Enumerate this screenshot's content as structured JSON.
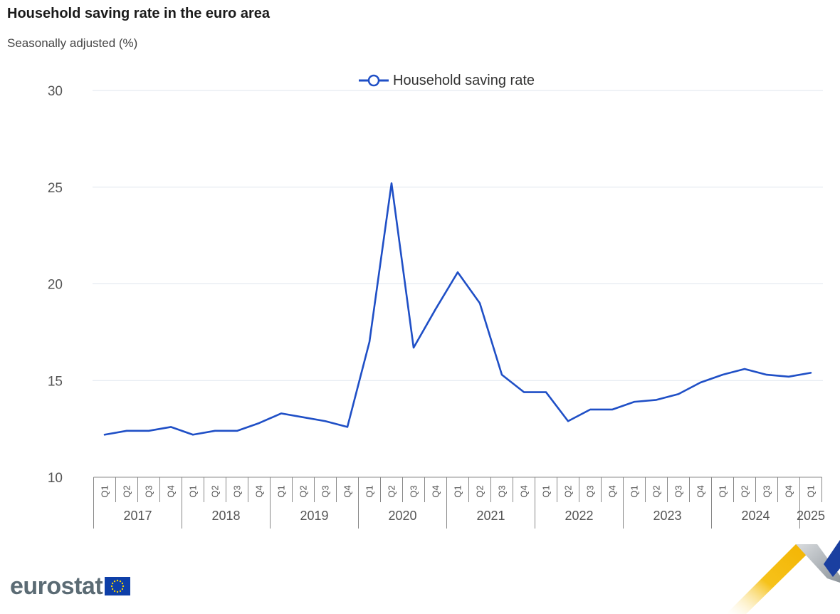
{
  "header": {
    "title": "Household saving rate in the euro area",
    "subtitle": "Seasonally adjusted (%)"
  },
  "branding": {
    "logo_text": "eurostat"
  },
  "colors": {
    "series": "#1f4fc6",
    "grid": "#dfe6ee",
    "axis_text": "#555555",
    "axis_line": "#888888"
  },
  "chart_data": {
    "type": "line",
    "title": "Household saving rate in the euro area",
    "subtitle": "Seasonally adjusted (%)",
    "xlabel": "",
    "ylabel": "",
    "ylim": [
      10,
      30
    ],
    "yticks": [
      10,
      15,
      20,
      25,
      30
    ],
    "grid": true,
    "legend_position": "top-center",
    "categories": [
      "2017-Q1",
      "2017-Q2",
      "2017-Q3",
      "2017-Q4",
      "2018-Q1",
      "2018-Q2",
      "2018-Q3",
      "2018-Q4",
      "2019-Q1",
      "2019-Q2",
      "2019-Q3",
      "2019-Q4",
      "2020-Q1",
      "2020-Q2",
      "2020-Q3",
      "2020-Q4",
      "2021-Q1",
      "2021-Q2",
      "2021-Q3",
      "2021-Q4",
      "2022-Q1",
      "2022-Q2",
      "2022-Q3",
      "2022-Q4",
      "2023-Q1",
      "2023-Q2",
      "2023-Q3",
      "2023-Q4",
      "2024-Q1",
      "2024-Q2",
      "2024-Q3",
      "2024-Q4",
      "2025-Q1"
    ],
    "quarter_labels": [
      "Q1",
      "Q2",
      "Q3",
      "Q4"
    ],
    "years": [
      "2017",
      "2018",
      "2019",
      "2020",
      "2021",
      "2022",
      "2023",
      "2024",
      "2025"
    ],
    "series": [
      {
        "name": "Household saving rate",
        "values": [
          12.2,
          12.4,
          12.4,
          12.6,
          12.2,
          12.4,
          12.4,
          12.8,
          13.3,
          13.1,
          12.9,
          12.6,
          17.0,
          25.2,
          16.7,
          18.7,
          20.6,
          19.0,
          15.3,
          14.4,
          14.4,
          12.9,
          13.5,
          13.5,
          13.9,
          14.0,
          14.3,
          14.9,
          15.3,
          15.6,
          15.3,
          15.2,
          15.4
        ]
      }
    ]
  }
}
